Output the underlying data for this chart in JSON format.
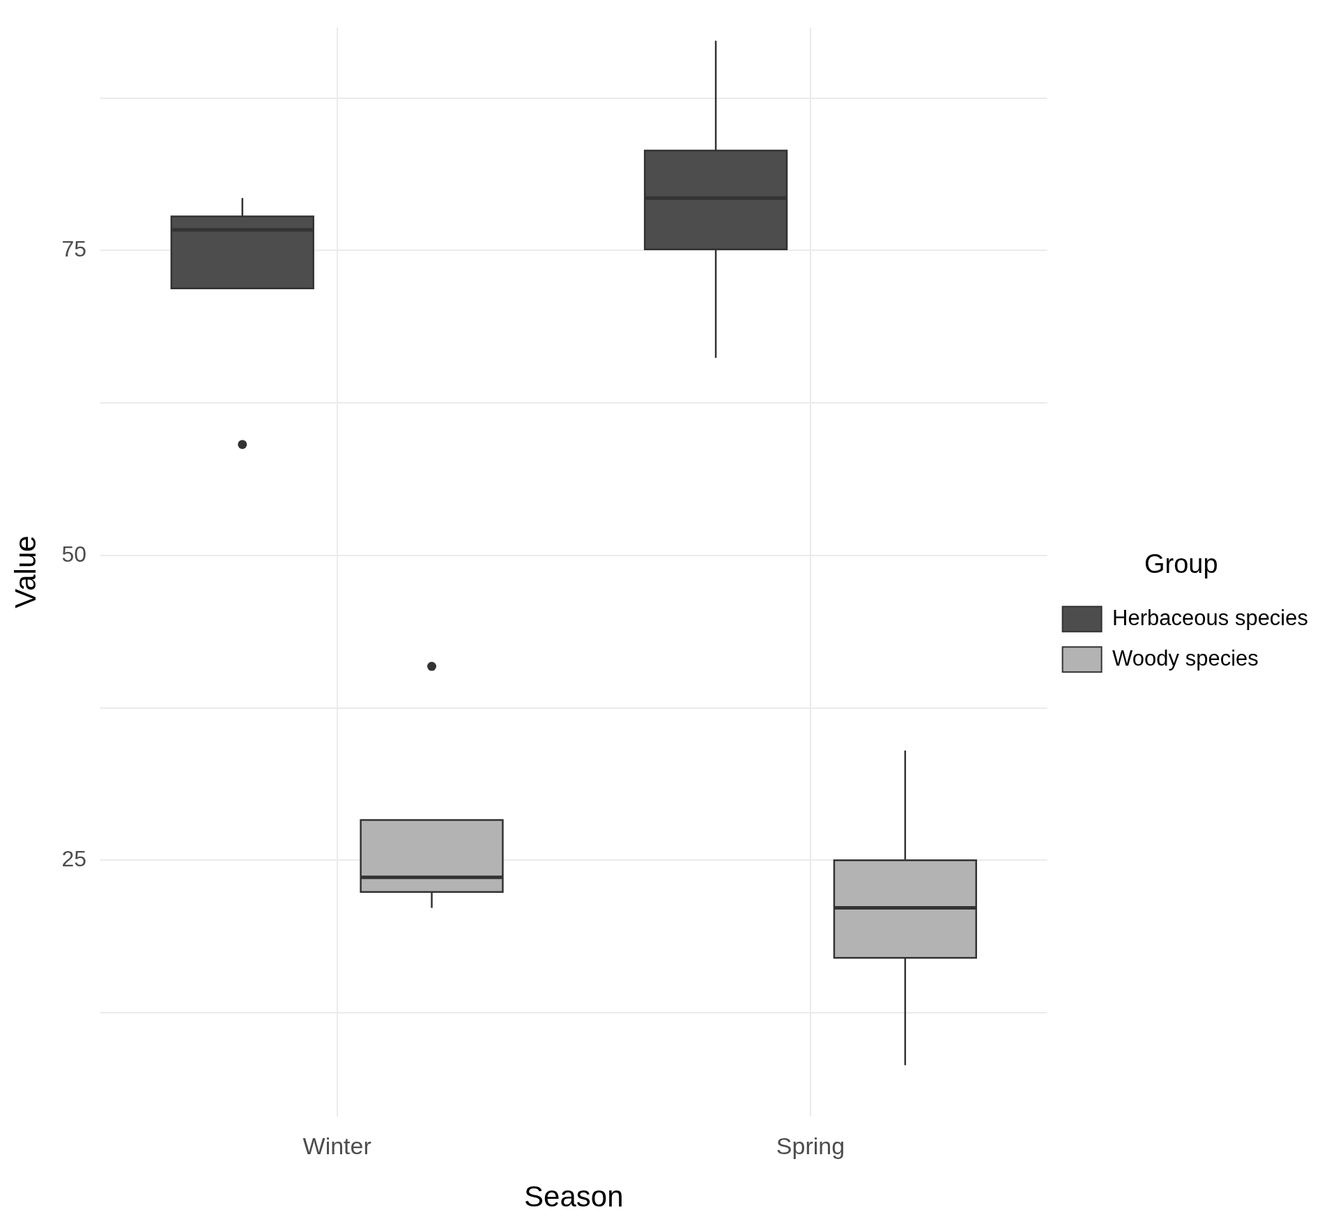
{
  "chart_data": {
    "type": "box",
    "xlabel": "Season",
    "ylabel": "Value",
    "legend_title": "Group",
    "categories": [
      "Winter",
      "Spring"
    ],
    "ylim": [
      4,
      93.3
    ],
    "yticks": [
      {
        "value": 12.5,
        "label": null
      },
      25,
      {
        "value": 37.5,
        "label": null
      },
      50,
      {
        "value": 62.5,
        "label": null
      },
      75,
      {
        "value": 87.5,
        "label": null
      }
    ],
    "grid": true,
    "legend": "right",
    "series": [
      {
        "name": "Herbaceous species",
        "color": "#4d4d4d",
        "boxes": [
          {
            "low": 71.9,
            "q1": 71.9,
            "median": 76.7,
            "q3": 77.8,
            "high": 79.3,
            "outliers": [
              59.1
            ]
          },
          {
            "low": 66.2,
            "q1": 75.1,
            "median": 79.3,
            "q3": 83.2,
            "high": 92.2
          }
        ]
      },
      {
        "name": "Woody species",
        "color": "#b3b3b3",
        "boxes": [
          {
            "low": 21.1,
            "q1": 22.4,
            "median": 23.6,
            "q3": 28.3,
            "high": 28.3,
            "outliers": [
              40.9
            ]
          },
          {
            "low": 8.2,
            "q1": 17,
            "median": 21.1,
            "q3": 25,
            "high": 34
          }
        ]
      }
    ]
  }
}
